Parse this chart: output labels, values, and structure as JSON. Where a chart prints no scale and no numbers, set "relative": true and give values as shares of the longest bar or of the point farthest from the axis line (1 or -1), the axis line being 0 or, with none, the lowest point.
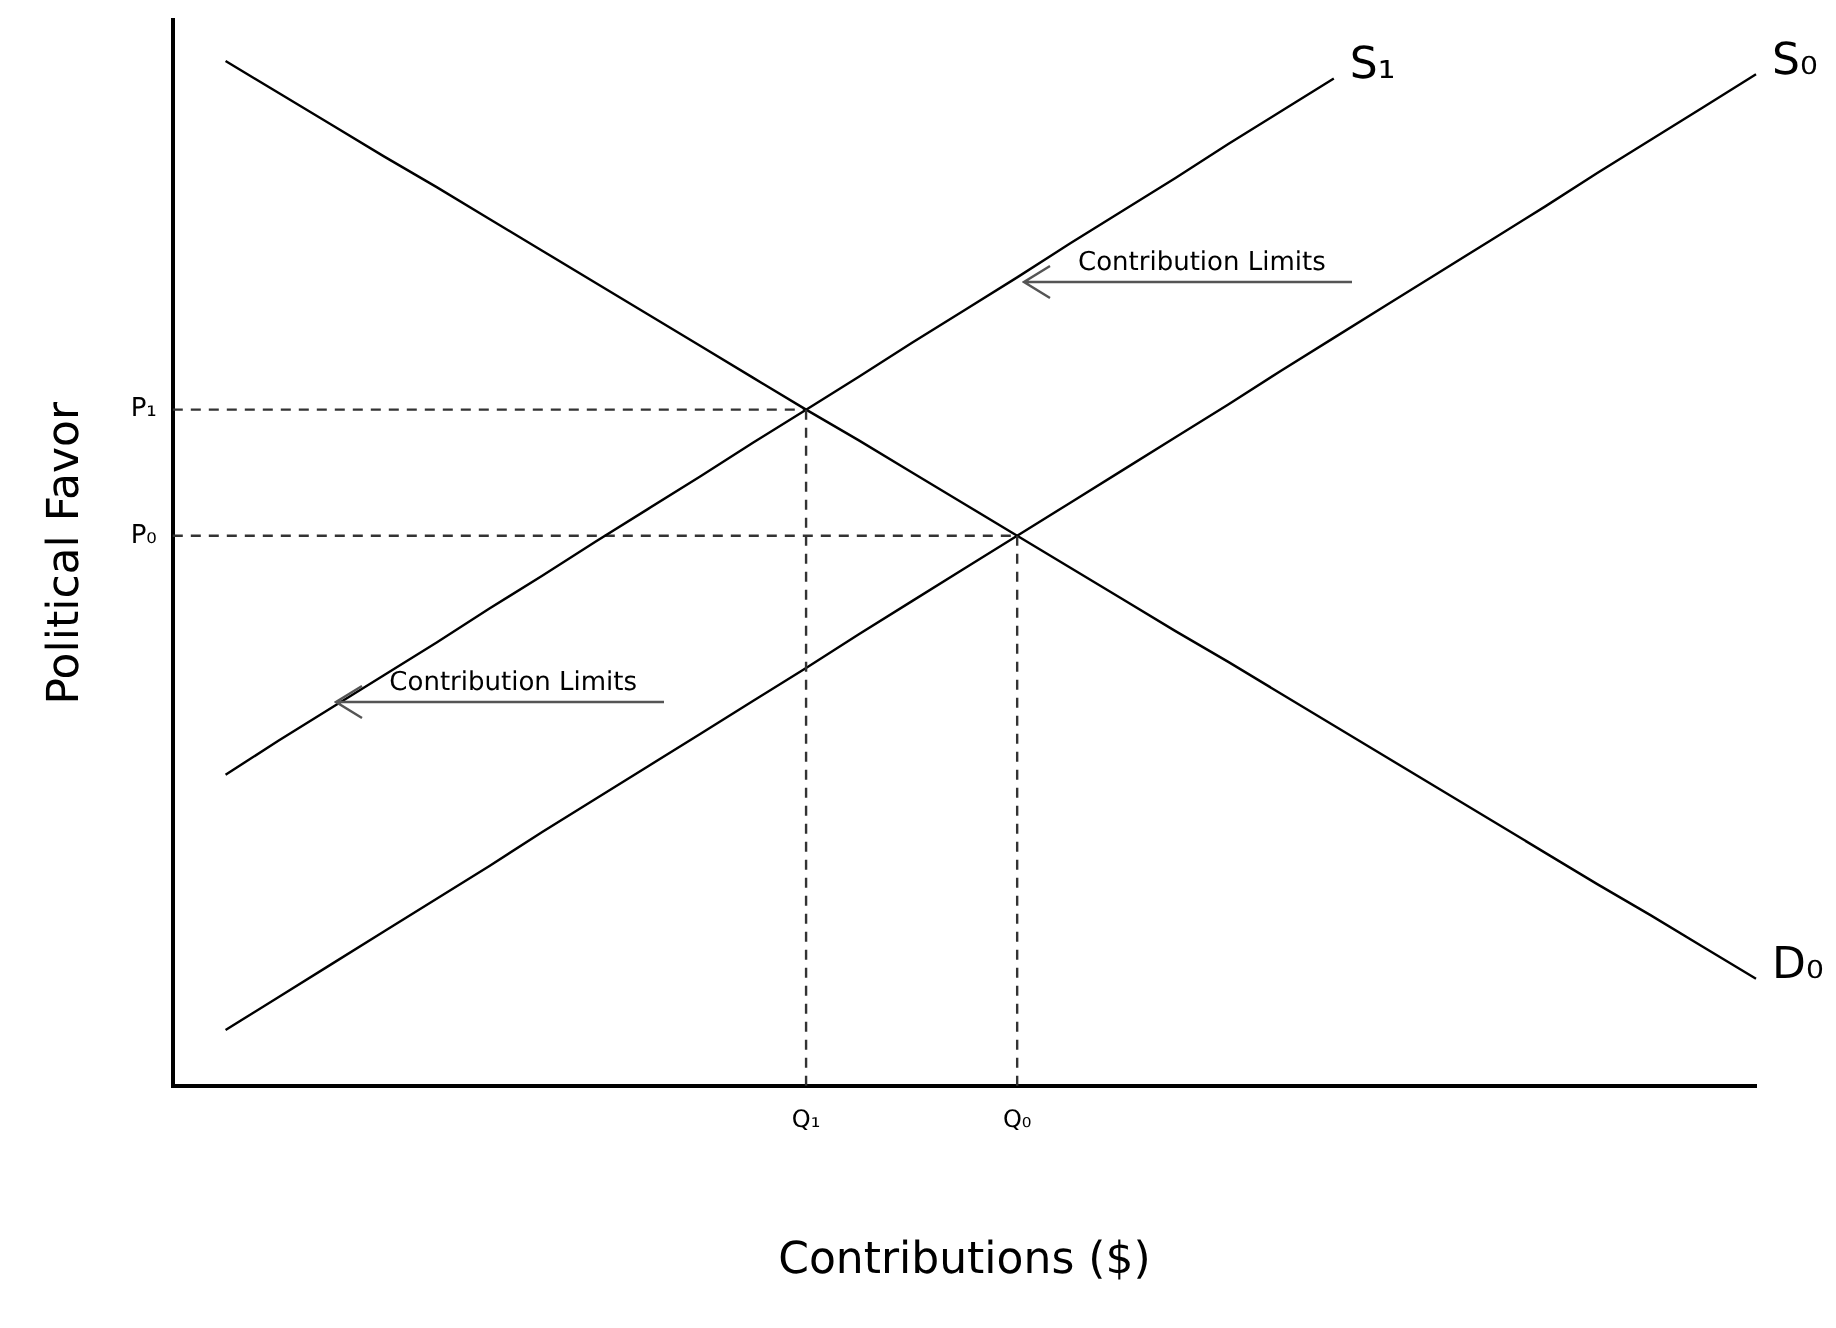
{
  "chart_data": {
    "type": "line",
    "xlabel": "Contributions ($)",
    "ylabel": "Political Favor",
    "relative": true,
    "marker": "none",
    "categories": [
      null,
      null,
      null,
      null,
      null,
      null,
      null,
      null,
      null,
      null,
      null,
      null,
      "Q₁",
      null,
      null,
      null,
      "Q₀",
      null,
      null,
      null,
      null,
      null,
      null,
      null,
      null,
      null,
      null,
      null,
      null,
      null,
      null
    ],
    "series": [
      {
        "name": "D₀",
        "color": "#000000",
        "values": [
          null,
          1.0,
          0.969,
          0.938,
          0.907,
          0.877,
          0.846,
          0.815,
          0.784,
          0.753,
          0.722,
          0.691,
          0.66,
          0.63,
          0.599,
          0.568,
          0.537,
          0.506,
          0.475,
          0.444,
          0.414,
          0.383,
          0.352,
          0.321,
          0.29,
          0.259,
          0.228,
          0.197,
          0.167,
          0.136,
          0.105
        ]
      },
      {
        "name": "S₁",
        "color": "#000000",
        "values": [
          null,
          0.304,
          0.337,
          0.369,
          0.401,
          0.433,
          0.466,
          0.498,
          0.531,
          0.563,
          0.595,
          0.628,
          0.66,
          0.692,
          0.725,
          0.757,
          0.789,
          0.822,
          0.854,
          0.886,
          0.919,
          0.951,
          0.983,
          null,
          null,
          null,
          null,
          null,
          null,
          null,
          null
        ]
      },
      {
        "name": "S₀",
        "color": "#000000",
        "values": [
          null,
          0.055,
          0.087,
          0.119,
          0.151,
          0.183,
          0.215,
          0.248,
          0.28,
          0.312,
          0.344,
          0.376,
          0.408,
          0.441,
          0.473,
          0.505,
          0.537,
          0.569,
          0.601,
          0.633,
          0.665,
          0.698,
          0.73,
          0.762,
          0.794,
          0.826,
          0.858,
          0.891,
          0.923,
          0.955,
          0.987
        ]
      },
      {
        "name": "P₁",
        "color": "#333333",
        "line_style": "dashed",
        "values": [
          0.66,
          0.66,
          0.66,
          0.66,
          0.66,
          0.66,
          0.66,
          0.66,
          0.66,
          0.66,
          0.66,
          0.66,
          0.66,
          null,
          null,
          null,
          null,
          null,
          null,
          null,
          null,
          null,
          null,
          null,
          null,
          null,
          null,
          null,
          null,
          null,
          null
        ]
      },
      {
        "name": "P₀",
        "color": "#333333",
        "line_style": "dashed",
        "values": [
          0.537,
          0.537,
          0.537,
          0.537,
          0.537,
          0.537,
          0.537,
          0.537,
          0.537,
          0.537,
          0.537,
          0.537,
          0.537,
          0.537,
          0.537,
          0.537,
          0.537,
          null,
          null,
          null,
          null,
          null,
          null,
          null,
          null,
          null,
          null,
          null,
          null,
          null,
          null
        ]
      }
    ],
    "annotations": [
      "Contribution Limits",
      "Contribution Limits"
    ]
  }
}
